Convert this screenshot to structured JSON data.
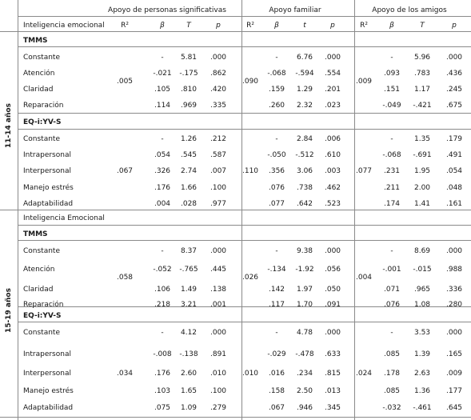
{
  "header": {
    "groups": [
      "Apoyo de personas significativas",
      "Apoyo familiar",
      "Apoyo de los amigos"
    ],
    "col_ie": "Inteligencia emocional",
    "stats": [
      [
        "R²",
        "β",
        "T",
        "p"
      ],
      [
        "R²",
        "β",
        "t",
        "p"
      ],
      [
        "R²",
        "β",
        "T",
        "p"
      ]
    ]
  },
  "sections": [
    {
      "age": "11-14 años",
      "subheader": "",
      "blocks": [
        {
          "title": "TMMS",
          "r2": [
            ".005",
            ".090",
            ".009"
          ],
          "rows": [
            {
              "label": "Constante",
              "vals": [
                "-",
                "5.81",
                ".000",
                "-",
                "6.76",
                ".000",
                "-",
                "5.96",
                ".000"
              ]
            },
            {
              "label": "Atención",
              "vals": [
                "-.021",
                "-.175",
                ".862",
                "-.068",
                "-.594",
                ".554",
                ".093",
                ".783",
                ".436"
              ]
            },
            {
              "label": "Claridad",
              "vals": [
                ".105",
                ".810",
                ".420",
                ".159",
                "1.29",
                ".201",
                ".151",
                "1.17",
                ".245"
              ]
            },
            {
              "label": "Reparación",
              "vals": [
                ".114",
                ".969",
                ".335",
                ".260",
                "2.32",
                ".023",
                "-.049",
                "-.421",
                ".675"
              ]
            }
          ]
        },
        {
          "title": "EQ-i:YV-S",
          "r2": [
            ".067",
            ".110",
            ".077"
          ],
          "rows": [
            {
              "label": "Constante",
              "vals": [
                "-",
                "1.26",
                ".212",
                "-",
                "2.84",
                ".006",
                "-",
                "1.35",
                ".179"
              ]
            },
            {
              "label": "Intrapersonal",
              "vals": [
                ".054",
                ".545",
                ".587",
                "-.050",
                "-.512",
                ".610",
                "-.068",
                "-.691",
                ".491"
              ]
            },
            {
              "label": "Interpersonal",
              "vals": [
                ".326",
                "2.74",
                ".007",
                ".356",
                "3.06",
                ".003",
                ".231",
                "1.95",
                ".054"
              ]
            },
            {
              "label": "Manejo estrés",
              "vals": [
                ".176",
                "1.66",
                ".100",
                ".076",
                ".738",
                ".462",
                ".211",
                "2.00",
                ".048"
              ]
            },
            {
              "label": "Adaptabilidad",
              "vals": [
                ".004",
                ".028",
                ".977",
                ".077",
                ".642",
                ".523",
                ".174",
                "1.41",
                ".161"
              ]
            }
          ]
        }
      ]
    },
    {
      "age": "15-19 años",
      "subheader": "Inteligencia Emocional",
      "blocks": [
        {
          "title": "TMMS",
          "r2": [
            ".058",
            ".026",
            ".004"
          ],
          "rows": [
            {
              "label": "Constante",
              "vals": [
                "-",
                "8.37",
                ".000",
                "-",
                "9.38",
                ".000",
                "-",
                "8.69",
                ".000"
              ]
            },
            {
              "label": "Atención",
              "vals": [
                "-.052",
                "-.765",
                ".445",
                "-.134",
                "-1.92",
                ".056",
                "-.001",
                "-.015",
                ".988"
              ]
            },
            {
              "label": "Claridad",
              "vals": [
                ".106",
                "1.49",
                ".138",
                ".142",
                "1.97",
                ".050",
                ".071",
                ".965",
                ".336"
              ]
            },
            {
              "label": "Reparación",
              "vals": [
                ".218",
                "3.21",
                ".001",
                ".117",
                "1.70",
                ".091",
                ".076",
                "1.08",
                ".280"
              ]
            }
          ]
        },
        {
          "title": "EQ-i:YV-S",
          "r2": [
            ".034",
            ".010",
            ".024"
          ],
          "rows": [
            {
              "label": "Constante",
              "vals": [
                "-",
                "4.12",
                ".000",
                "-",
                "4.78",
                ".000",
                "-",
                "3.53",
                ".000"
              ]
            },
            {
              "label": "Intrapersonal",
              "vals": [
                "-.008",
                "-.138",
                ".891",
                "-.029",
                "-.478",
                ".633",
                ".085",
                "1.39",
                ".165"
              ]
            },
            {
              "label": "Interpersonal",
              "vals": [
                ".176",
                "2.60",
                ".010",
                ".016",
                ".234",
                ".815",
                ".178",
                "2.63",
                ".009"
              ]
            },
            {
              "label": "Manejo estrés",
              "vals": [
                ".103",
                "1.65",
                ".100",
                ".158",
                "2.50",
                ".013",
                ".085",
                "1.36",
                ".177"
              ]
            },
            {
              "label": "Adaptabilidad",
              "vals": [
                ".075",
                "1.09",
                ".279",
                ".067",
                ".946",
                ".345",
                "-.032",
                "-.461",
                ".645"
              ]
            }
          ]
        }
      ]
    }
  ]
}
